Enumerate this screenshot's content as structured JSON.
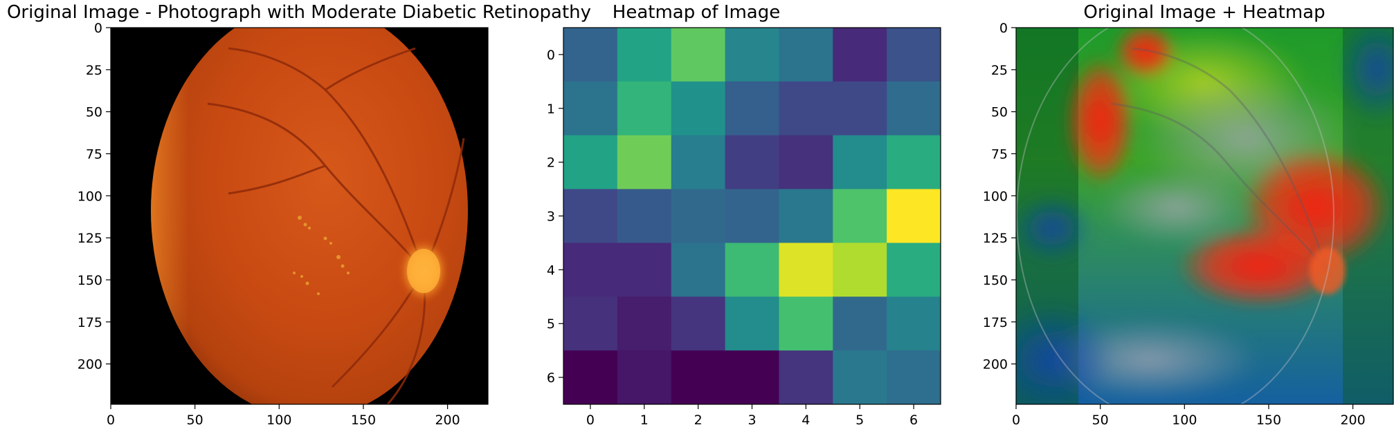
{
  "figure": {
    "colors": {
      "background": "#ffffff",
      "axis": "#000000",
      "fundus_black": "#000000"
    }
  },
  "chart_data": [
    {
      "type": "image",
      "title": "Original Image - Photograph with Moderate Diabetic Retinopathy",
      "xlim": [
        0,
        224
      ],
      "ylim": [
        224,
        0
      ],
      "x_ticks": [
        0,
        50,
        100,
        150,
        200
      ],
      "y_ticks": [
        0,
        25,
        50,
        75,
        100,
        125,
        150,
        175,
        200
      ],
      "content": "fundus-photograph"
    },
    {
      "type": "heatmap",
      "title": "Heatmap of Image",
      "colormap": "viridis",
      "x_ticks": [
        0,
        1,
        2,
        3,
        4,
        5,
        6
      ],
      "y_ticks": [
        0,
        1,
        2,
        3,
        4,
        5,
        6
      ],
      "values": [
        [
          0.32,
          0.58,
          0.75,
          0.45,
          0.38,
          0.12,
          0.25
        ],
        [
          0.38,
          0.65,
          0.5,
          0.3,
          0.22,
          0.22,
          0.35
        ],
        [
          0.58,
          0.78,
          0.42,
          0.18,
          0.14,
          0.48,
          0.62
        ],
        [
          0.22,
          0.28,
          0.34,
          0.32,
          0.4,
          0.72,
          1.0
        ],
        [
          0.12,
          0.12,
          0.38,
          0.68,
          0.95,
          0.88,
          0.62
        ],
        [
          0.14,
          0.08,
          0.15,
          0.48,
          0.7,
          0.34,
          0.44
        ],
        [
          0.0,
          0.06,
          0.0,
          0.0,
          0.15,
          0.4,
          0.36
        ]
      ]
    },
    {
      "type": "image",
      "title": "Original Image + Heatmap",
      "xlim": [
        0,
        224
      ],
      "ylim": [
        224,
        0
      ],
      "x_ticks": [
        0,
        50,
        100,
        150,
        200
      ],
      "y_ticks": [
        0,
        25,
        50,
        75,
        100,
        125,
        150,
        175,
        200
      ],
      "content": "fundus-photograph-with-jet-heatmap-overlay"
    }
  ]
}
